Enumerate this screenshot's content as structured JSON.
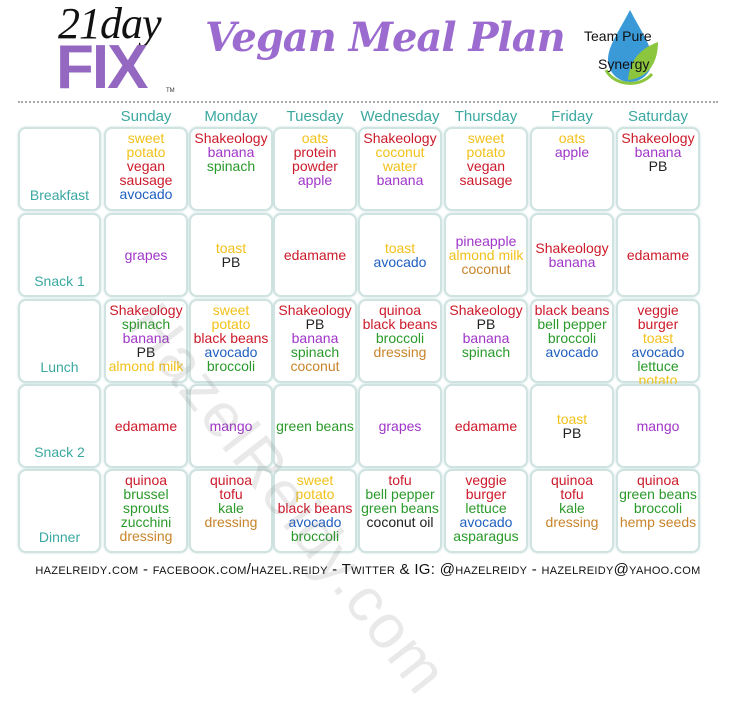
{
  "header": {
    "logo_top": "21day",
    "logo_bottom": "FIX",
    "logo_tm": "TM",
    "title": "Vegan Meal Plan",
    "brand_line1": "Team Pure",
    "brand_line2": "Synergy"
  },
  "days": [
    "Sunday",
    "Monday",
    "Tuesday",
    "Wednesday",
    "Thursday",
    "Friday",
    "Saturday"
  ],
  "colors": {
    "Y": "#f2c11a",
    "R": "#cc1a2a",
    "P": "#a035c8",
    "G": "#2a9a2a",
    "B": "#1f5fbf",
    "K": "#222222",
    "O": "#c8842a",
    "accent": "#3aa8a0",
    "title": "#9b6bd0"
  },
  "watermark": "HazelReidy.com",
  "meals": [
    {
      "label": "Breakfast",
      "cells": [
        [
          [
            "sweet",
            "Y"
          ],
          [
            "potato",
            "Y"
          ],
          [
            "vegan",
            "R"
          ],
          [
            "sausage",
            "R"
          ],
          [
            "avocado",
            "B"
          ]
        ],
        [
          [
            "Shakeology",
            "R"
          ],
          [
            "banana",
            "P"
          ],
          [
            "spinach",
            "G"
          ]
        ],
        [
          [
            "oats",
            "Y"
          ],
          [
            "protein",
            "R"
          ],
          [
            "powder",
            "R"
          ],
          [
            "apple",
            "P"
          ]
        ],
        [
          [
            "Shakeology",
            "R"
          ],
          [
            "coconut",
            "Y"
          ],
          [
            "water",
            "Y"
          ],
          [
            "banana",
            "P"
          ]
        ],
        [
          [
            "sweet",
            "Y"
          ],
          [
            "potato",
            "Y"
          ],
          [
            "vegan",
            "R"
          ],
          [
            "sausage",
            "R"
          ]
        ],
        [
          [
            "oats",
            "Y"
          ],
          [
            "apple",
            "P"
          ]
        ],
        [
          [
            "Shakeology",
            "R"
          ],
          [
            "banana",
            "P"
          ],
          [
            "PB",
            "K"
          ]
        ]
      ]
    },
    {
      "label": "Snack 1",
      "cells": [
        [
          [
            "grapes",
            "P"
          ]
        ],
        [
          [
            "toast",
            "Y"
          ],
          [
            "PB",
            "K"
          ]
        ],
        [
          [
            "edamame",
            "R"
          ]
        ],
        [
          [
            "toast",
            "Y"
          ],
          [
            "avocado",
            "B"
          ]
        ],
        [
          [
            "pineapple",
            "P"
          ],
          [
            "almond milk",
            "Y"
          ],
          [
            "coconut",
            "O"
          ]
        ],
        [
          [
            "Shakeology",
            "R"
          ],
          [
            "banana",
            "P"
          ]
        ],
        [
          [
            "edamame",
            "R"
          ]
        ]
      ]
    },
    {
      "label": "Lunch",
      "cells": [
        [
          [
            "Shakeology",
            "R"
          ],
          [
            "spinach",
            "G"
          ],
          [
            "banana",
            "P"
          ],
          [
            "PB",
            "K"
          ],
          [
            "almond milk",
            "Y"
          ]
        ],
        [
          [
            "sweet",
            "Y"
          ],
          [
            "potato",
            "Y"
          ],
          [
            "black beans",
            "R"
          ],
          [
            "avocado",
            "B"
          ],
          [
            "broccoli",
            "G"
          ]
        ],
        [
          [
            "Shakeology",
            "R"
          ],
          [
            "PB",
            "K"
          ],
          [
            "banana",
            "P"
          ],
          [
            "spinach",
            "G"
          ],
          [
            "coconut",
            "O"
          ]
        ],
        [
          [
            "quinoa",
            "R"
          ],
          [
            "black beans",
            "R"
          ],
          [
            "broccoli",
            "G"
          ],
          [
            "dressing",
            "O"
          ]
        ],
        [
          [
            "Shakeology",
            "R"
          ],
          [
            "PB",
            "K"
          ],
          [
            "banana",
            "P"
          ],
          [
            "spinach",
            "G"
          ]
        ],
        [
          [
            "black beans",
            "R"
          ],
          [
            "bell pepper",
            "G"
          ],
          [
            "broccoli",
            "G"
          ],
          [
            "avocado",
            "B"
          ]
        ],
        [
          [
            "veggie",
            "R"
          ],
          [
            "burger",
            "R"
          ],
          [
            "toast",
            "Y"
          ],
          [
            "avocado",
            "B"
          ],
          [
            "lettuce",
            "G"
          ],
          [
            "potato",
            "Y"
          ]
        ]
      ]
    },
    {
      "label": "Snack 2",
      "cells": [
        [
          [
            "edamame",
            "R"
          ]
        ],
        [
          [
            "mango",
            "P"
          ]
        ],
        [
          [
            "green beans",
            "G"
          ]
        ],
        [
          [
            "grapes",
            "P"
          ]
        ],
        [
          [
            "edamame",
            "R"
          ]
        ],
        [
          [
            "toast",
            "Y"
          ],
          [
            "PB",
            "K"
          ]
        ],
        [
          [
            "mango",
            "P"
          ]
        ]
      ]
    },
    {
      "label": "Dinner",
      "cells": [
        [
          [
            "quinoa",
            "R"
          ],
          [
            "brussel",
            "G"
          ],
          [
            "sprouts",
            "G"
          ],
          [
            "zucchini",
            "G"
          ],
          [
            "dressing",
            "O"
          ]
        ],
        [
          [
            "quinoa",
            "R"
          ],
          [
            "tofu",
            "R"
          ],
          [
            "kale",
            "G"
          ],
          [
            "dressing",
            "O"
          ]
        ],
        [
          [
            "sweet",
            "Y"
          ],
          [
            "potato",
            "Y"
          ],
          [
            "black beans",
            "R"
          ],
          [
            "avocado",
            "B"
          ],
          [
            "broccoli",
            "G"
          ]
        ],
        [
          [
            "tofu",
            "R"
          ],
          [
            "bell pepper",
            "G"
          ],
          [
            "green beans",
            "G"
          ],
          [
            "coconut oil",
            "K"
          ]
        ],
        [
          [
            "veggie",
            "R"
          ],
          [
            "burger",
            "R"
          ],
          [
            "lettuce",
            "G"
          ],
          [
            "avocado",
            "B"
          ],
          [
            "asparagus",
            "G"
          ]
        ],
        [
          [
            "quinoa",
            "R"
          ],
          [
            "tofu",
            "R"
          ],
          [
            "kale",
            "G"
          ],
          [
            "dressing",
            "O"
          ]
        ],
        [
          [
            "quinoa",
            "R"
          ],
          [
            "green beans",
            "G"
          ],
          [
            "broccoli",
            "G"
          ],
          [
            "hemp seeds",
            "O"
          ]
        ]
      ]
    }
  ],
  "footer": "hazelreidy.com  -  facebook.com/hazel.reidy  -  Twitter & IG: @hazelreidy  -  hazelreidy@yahoo.com"
}
